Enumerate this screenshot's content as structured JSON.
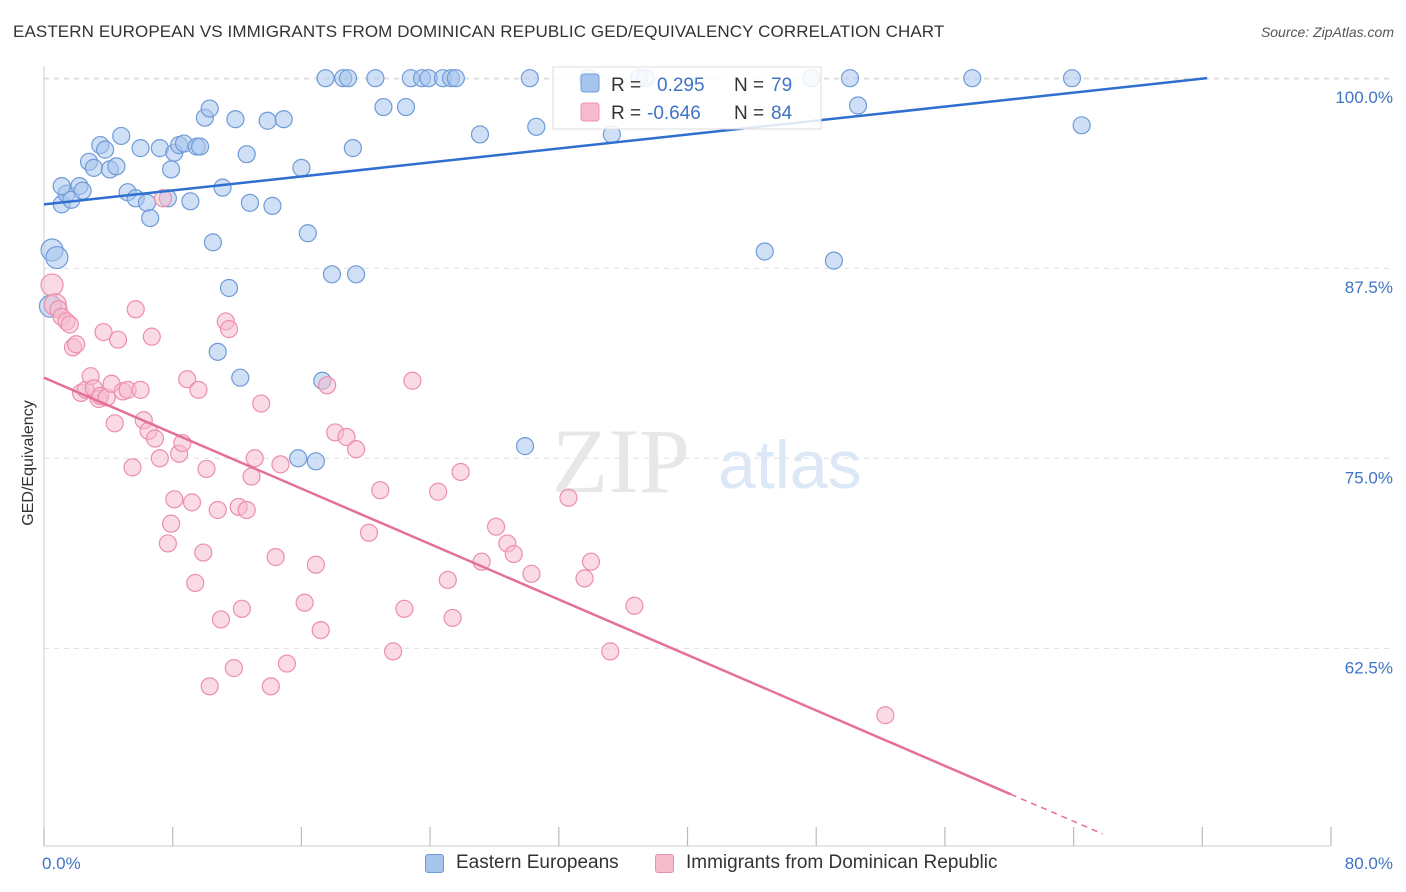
{
  "header": {
    "title": "EASTERN EUROPEAN VS IMMIGRANTS FROM DOMINICAN REPUBLIC GED/EQUIVALENCY CORRELATION CHART",
    "source": "Source: ZipAtlas.com"
  },
  "watermark": {
    "zip": "ZIP",
    "atlas": "atlas"
  },
  "stats": [
    {
      "r_label": "R =",
      "r_value": "0.295",
      "n_label": "N =",
      "n_value": "79"
    },
    {
      "r_label": "R =",
      "r_value": "-0.646",
      "n_label": "N =",
      "n_value": "84"
    }
  ],
  "colors": {
    "blue_fill": "#a7c4ec",
    "blue_stroke": "#6f9bd8",
    "blue_line": "#2f6fd0",
    "pink_fill": "#f6bccd",
    "pink_stroke": "#ec8fab",
    "pink_line": "#e56f9c",
    "value_text": "#3f73c6",
    "grid": "#dddddd"
  },
  "legend": {
    "series1": "Eastern Europeans",
    "series2": "Immigrants from Dominican Republic"
  },
  "chart_data": {
    "type": "scatter",
    "title": "EASTERN EUROPEAN VS IMMIGRANTS FROM DOMINICAN REPUBLIC GED/EQUIVALENCY CORRELATION CHART",
    "xlabel": "",
    "ylabel": "GED/Equivalency",
    "xlim": [
      0,
      80
    ],
    "ylim": [
      49.5,
      100.8
    ],
    "x_tick_labels": [
      "0.0%",
      "80.0%"
    ],
    "y_ticks": [
      100.0,
      87.5,
      75.0,
      62.5
    ],
    "y_tick_labels": [
      "100.0%",
      "87.5%",
      "75.0%",
      "62.5%"
    ],
    "grid": true,
    "legend_position": "bottom-center",
    "series": [
      {
        "name": "Eastern Europeans",
        "color": "#a7c4ec",
        "trend": {
          "x": [
            0,
            72.3
          ],
          "y": [
            91.7,
            100.0
          ]
        },
        "points": [
          [
            0.5,
            88.7
          ],
          [
            0.8,
            88.2
          ],
          [
            0.4,
            85.0
          ],
          [
            1.1,
            91.7
          ],
          [
            1.4,
            92.4
          ],
          [
            1.7,
            92.0
          ],
          [
            2.2,
            92.9
          ],
          [
            2.4,
            92.6
          ],
          [
            2.8,
            94.5
          ],
          [
            3.1,
            94.1
          ],
          [
            3.5,
            95.6
          ],
          [
            3.8,
            95.3
          ],
          [
            4.1,
            94.0
          ],
          [
            4.5,
            94.2
          ],
          [
            4.8,
            96.2
          ],
          [
            5.2,
            92.5
          ],
          [
            5.7,
            92.1
          ],
          [
            6.0,
            95.4
          ],
          [
            6.4,
            91.8
          ],
          [
            6.6,
            90.8
          ],
          [
            7.2,
            95.4
          ],
          [
            7.7,
            92.1
          ],
          [
            7.9,
            94.0
          ],
          [
            8.1,
            95.1
          ],
          [
            8.4,
            95.6
          ],
          [
            8.7,
            95.7
          ],
          [
            9.1,
            91.9
          ],
          [
            9.5,
            95.5
          ],
          [
            9.7,
            95.5
          ],
          [
            10.0,
            97.4
          ],
          [
            10.3,
            98.0
          ],
          [
            10.5,
            89.2
          ],
          [
            10.8,
            82.0
          ],
          [
            11.1,
            92.8
          ],
          [
            11.5,
            86.2
          ],
          [
            11.9,
            97.3
          ],
          [
            12.2,
            80.3
          ],
          [
            12.6,
            95.0
          ],
          [
            12.8,
            91.8
          ],
          [
            13.9,
            97.2
          ],
          [
            14.2,
            91.6
          ],
          [
            14.9,
            97.3
          ],
          [
            15.8,
            75.0
          ],
          [
            16.0,
            94.1
          ],
          [
            16.4,
            89.8
          ],
          [
            16.9,
            74.8
          ],
          [
            17.3,
            80.1
          ],
          [
            17.5,
            100.0
          ],
          [
            17.9,
            87.1
          ],
          [
            18.6,
            100.0
          ],
          [
            18.9,
            100.0
          ],
          [
            19.2,
            95.4
          ],
          [
            19.4,
            87.1
          ],
          [
            20.6,
            100.0
          ],
          [
            21.1,
            98.1
          ],
          [
            22.5,
            98.1
          ],
          [
            22.8,
            100.0
          ],
          [
            23.5,
            100.0
          ],
          [
            23.9,
            100.0
          ],
          [
            24.8,
            100.0
          ],
          [
            25.3,
            100.0
          ],
          [
            25.6,
            100.0
          ],
          [
            27.1,
            96.3
          ],
          [
            29.9,
            75.8
          ],
          [
            30.2,
            100.0
          ],
          [
            30.6,
            96.8
          ],
          [
            33.8,
            100.0
          ],
          [
            35.3,
            96.3
          ],
          [
            37.0,
            100.0
          ],
          [
            37.4,
            100.0
          ],
          [
            44.8,
            88.6
          ],
          [
            47.7,
            100.0
          ],
          [
            49.1,
            88.0
          ],
          [
            50.1,
            100.0
          ],
          [
            50.6,
            98.2
          ],
          [
            57.7,
            100.0
          ],
          [
            63.9,
            100.0
          ],
          [
            64.5,
            96.9
          ],
          [
            1.1,
            92.9
          ]
        ]
      },
      {
        "name": "Immigrants from Dominican Republic",
        "color": "#f6bccd",
        "trend": {
          "x": [
            0,
            60.1
          ],
          "y": [
            80.3,
            52.9
          ]
        },
        "trend_dashed": {
          "x": [
            60.1,
            65.8
          ],
          "y": [
            52.9,
            50.3
          ]
        },
        "points": [
          [
            0.5,
            86.4
          ],
          [
            0.7,
            85.1
          ],
          [
            0.9,
            84.8
          ],
          [
            1.1,
            84.3
          ],
          [
            1.4,
            84.0
          ],
          [
            1.6,
            83.8
          ],
          [
            1.8,
            82.3
          ],
          [
            2.0,
            82.5
          ],
          [
            2.3,
            79.3
          ],
          [
            2.6,
            79.5
          ],
          [
            2.9,
            80.4
          ],
          [
            3.1,
            79.6
          ],
          [
            3.4,
            78.9
          ],
          [
            3.5,
            79.1
          ],
          [
            3.7,
            83.3
          ],
          [
            3.9,
            79.0
          ],
          [
            4.2,
            79.9
          ],
          [
            4.4,
            77.3
          ],
          [
            4.6,
            82.8
          ],
          [
            4.9,
            79.4
          ],
          [
            5.2,
            79.5
          ],
          [
            5.5,
            74.4
          ],
          [
            5.7,
            84.8
          ],
          [
            6.0,
            79.5
          ],
          [
            6.2,
            77.5
          ],
          [
            6.5,
            76.8
          ],
          [
            6.7,
            83.0
          ],
          [
            6.9,
            76.3
          ],
          [
            7.2,
            75.0
          ],
          [
            7.4,
            92.1
          ],
          [
            7.7,
            69.4
          ],
          [
            7.9,
            70.7
          ],
          [
            8.1,
            72.3
          ],
          [
            8.4,
            75.3
          ],
          [
            8.6,
            76.0
          ],
          [
            8.9,
            80.2
          ],
          [
            9.2,
            72.1
          ],
          [
            9.4,
            66.8
          ],
          [
            9.6,
            79.5
          ],
          [
            9.9,
            68.8
          ],
          [
            10.1,
            74.3
          ],
          [
            10.3,
            60.0
          ],
          [
            10.8,
            71.6
          ],
          [
            11.0,
            64.4
          ],
          [
            11.3,
            84.0
          ],
          [
            11.5,
            83.5
          ],
          [
            11.8,
            61.2
          ],
          [
            12.1,
            71.8
          ],
          [
            12.3,
            65.1
          ],
          [
            12.6,
            71.6
          ],
          [
            12.9,
            73.8
          ],
          [
            13.1,
            75.0
          ],
          [
            13.5,
            78.6
          ],
          [
            14.1,
            60.0
          ],
          [
            14.4,
            68.5
          ],
          [
            14.7,
            74.6
          ],
          [
            15.1,
            61.5
          ],
          [
            16.2,
            65.5
          ],
          [
            16.9,
            68.0
          ],
          [
            17.2,
            63.7
          ],
          [
            17.6,
            79.8
          ],
          [
            18.1,
            76.7
          ],
          [
            18.8,
            76.4
          ],
          [
            19.4,
            75.6
          ],
          [
            20.2,
            70.1
          ],
          [
            20.9,
            72.9
          ],
          [
            21.7,
            62.3
          ],
          [
            22.4,
            65.1
          ],
          [
            22.9,
            80.1
          ],
          [
            24.5,
            72.8
          ],
          [
            25.1,
            67.0
          ],
          [
            25.4,
            64.5
          ],
          [
            25.9,
            74.1
          ],
          [
            27.2,
            68.2
          ],
          [
            28.1,
            70.5
          ],
          [
            28.8,
            69.4
          ],
          [
            29.2,
            68.7
          ],
          [
            30.3,
            67.4
          ],
          [
            32.6,
            72.4
          ],
          [
            33.6,
            67.1
          ],
          [
            34.0,
            68.2
          ],
          [
            35.2,
            62.3
          ],
          [
            36.7,
            65.3
          ],
          [
            52.3,
            58.1
          ]
        ]
      }
    ]
  }
}
